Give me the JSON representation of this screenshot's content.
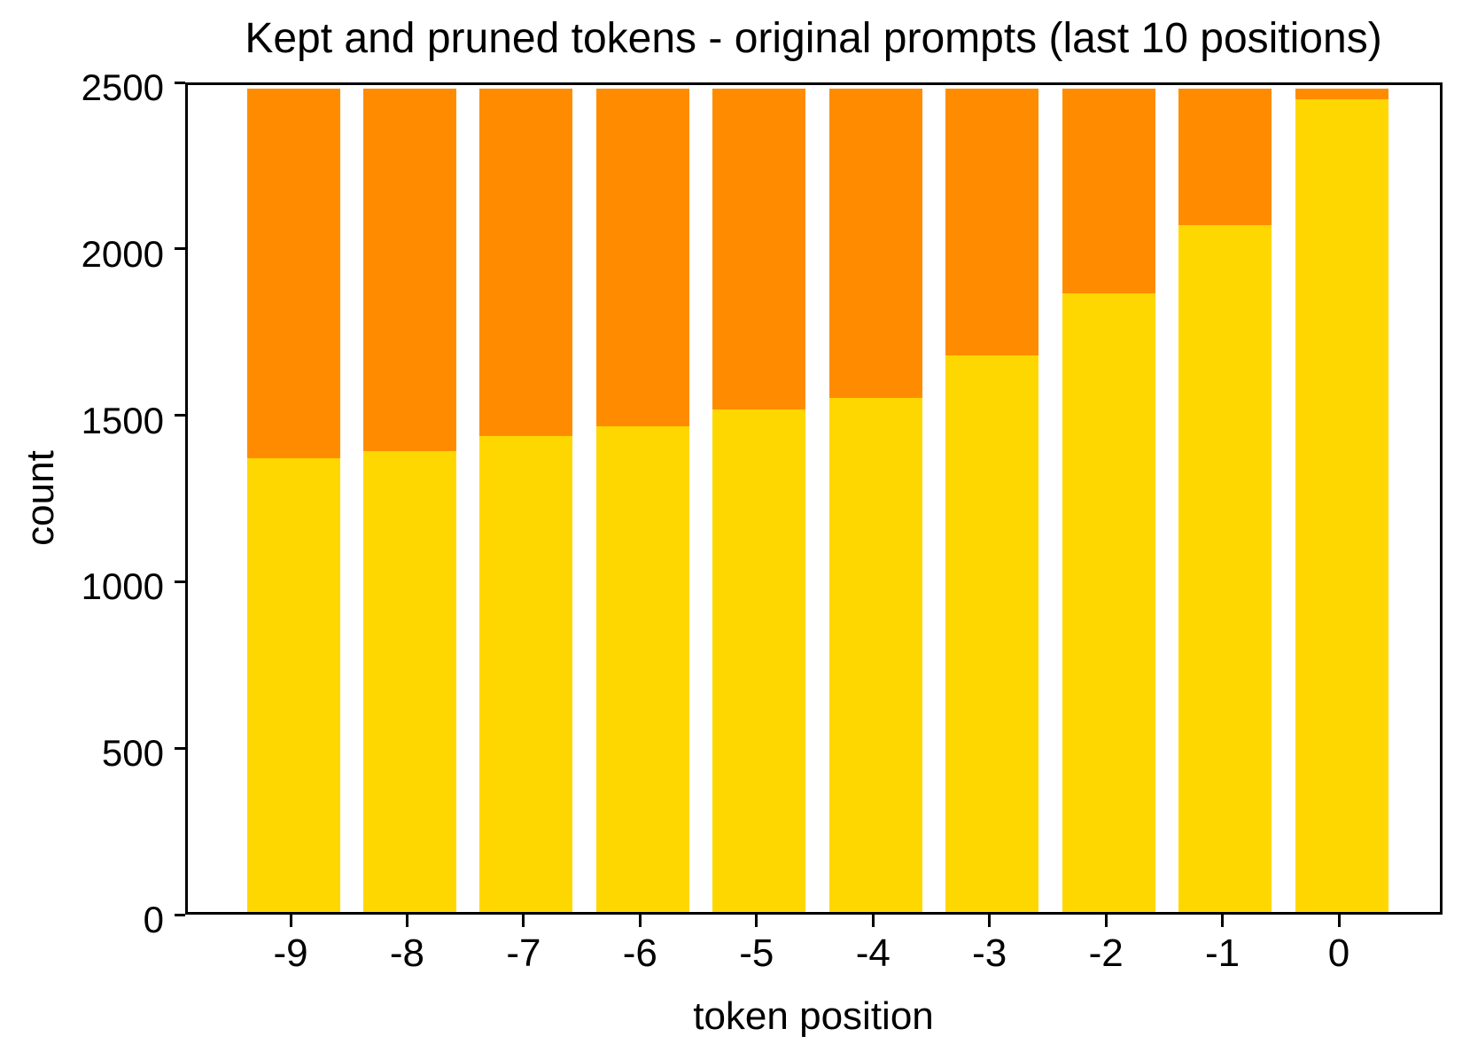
{
  "title": "Kept and pruned tokens - original prompts (last 10 positions)",
  "chart_data": {
    "type": "bar",
    "stacked": true,
    "title": "Kept and pruned tokens - original prompts (last 10 positions)",
    "xlabel": "token position",
    "ylabel": "count",
    "categories": [
      "-9",
      "-8",
      "-7",
      "-6",
      "-5",
      "-4",
      "-3",
      "-2",
      "-1",
      "0"
    ],
    "series": [
      {
        "name": "kept",
        "color": "#ffd700",
        "values": [
          1363,
          1384,
          1429,
          1460,
          1509,
          1543,
          1672,
          1858,
          2063,
          2441
        ]
      },
      {
        "name": "pruned",
        "color": "#ff8c00",
        "values": [
          1110,
          1089,
          1044,
          1013,
          964,
          930,
          801,
          615,
          410,
          32
        ]
      }
    ],
    "bar_total": 2473,
    "ylim": [
      0,
      2500
    ],
    "yticks": [
      0,
      500,
      1000,
      1500,
      2000,
      2500
    ],
    "grid": false,
    "legend": "none",
    "axis_color": "#000000",
    "background_color": "#ffffff"
  }
}
